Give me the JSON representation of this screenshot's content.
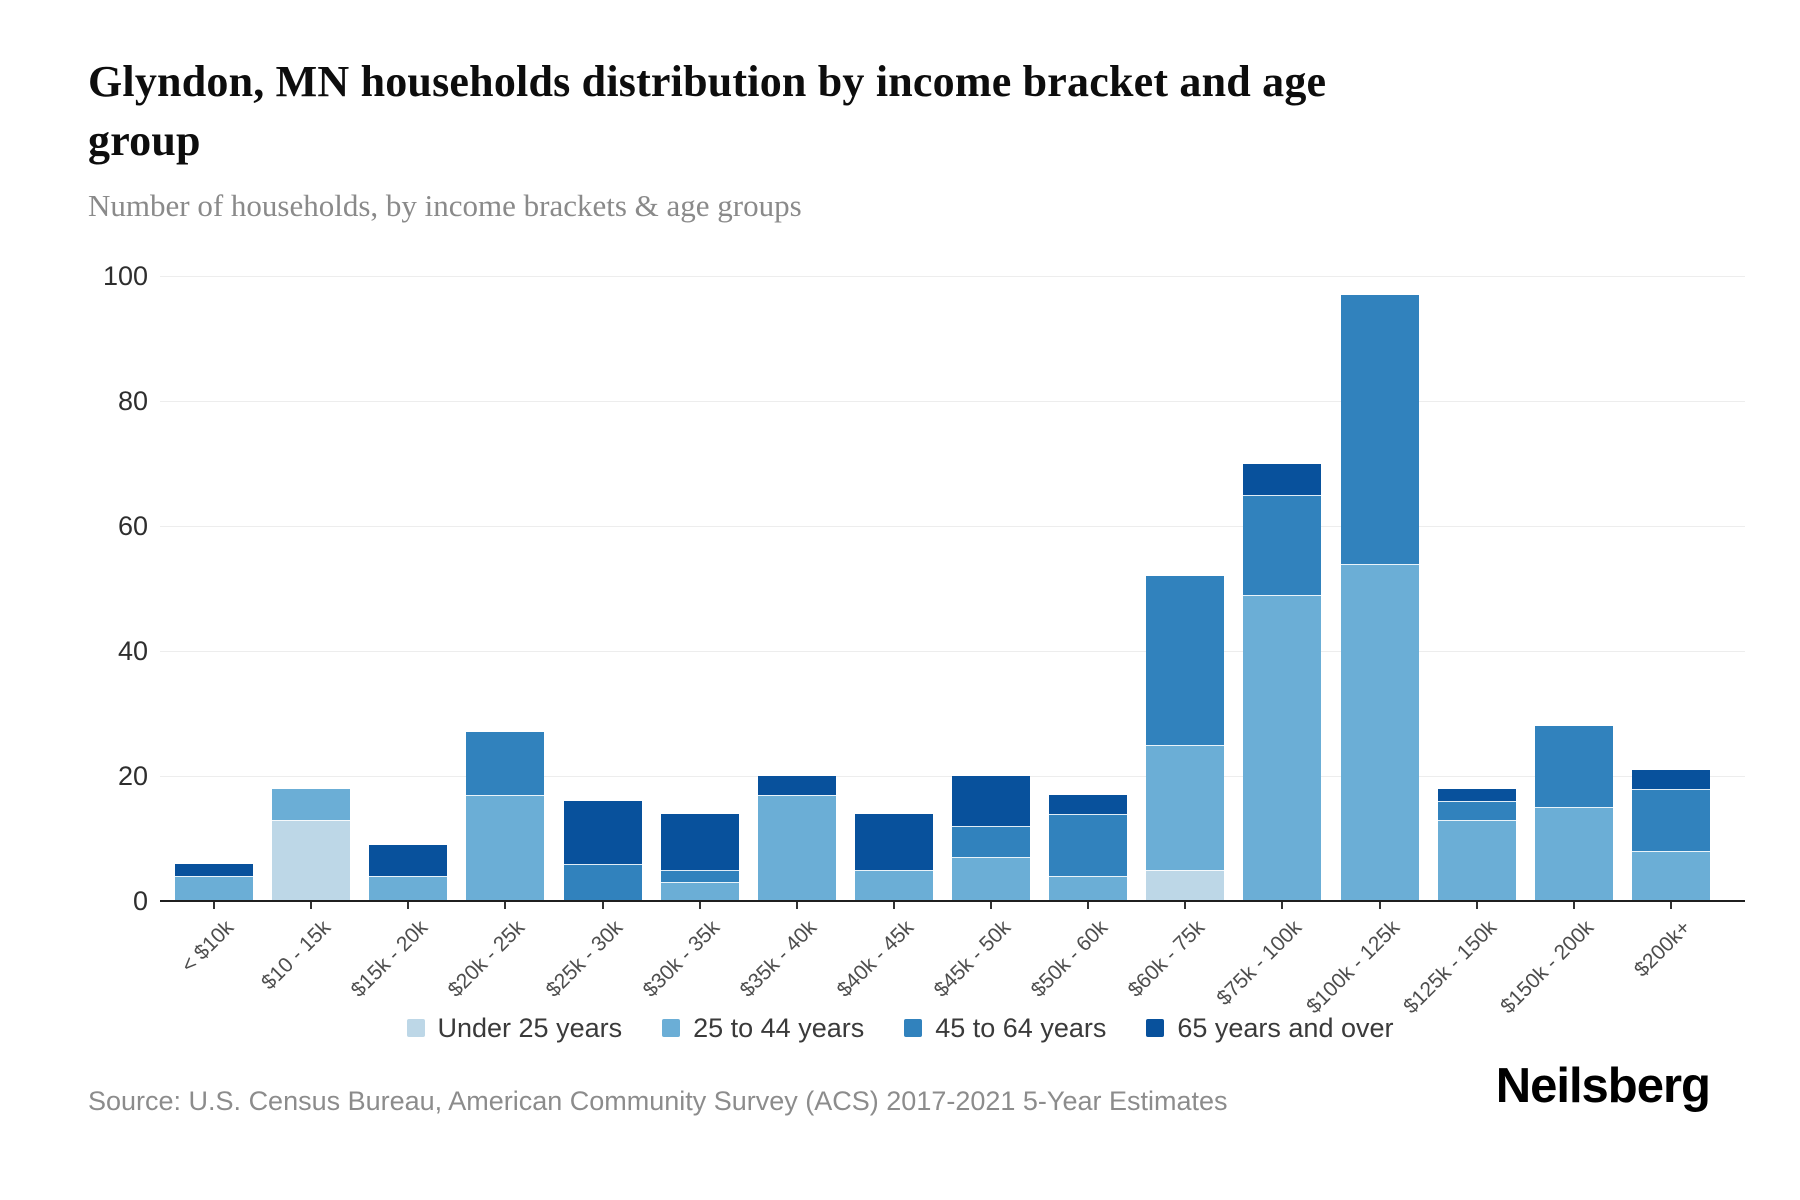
{
  "header": {
    "title_line1": "Glyndon, MN households distribution by income bracket and age",
    "title_line2": "group",
    "subtitle": "Number of households, by income brackets & age groups"
  },
  "chart_data": {
    "type": "bar",
    "stacked": true,
    "title": "Glyndon, MN households distribution by income bracket and age group",
    "subtitle": "Number of households, by income brackets & age groups",
    "categories": [
      "< $10k",
      "$10 - 15k",
      "$15k - 20k",
      "$20k - 25k",
      "$25k - 30k",
      "$30k - 35k",
      "$35k - 40k",
      "$40k - 45k",
      "$45k - 50k",
      "$50k - 60k",
      "$60k - 75k",
      "$75k - 100k",
      "$100k - 125k",
      "$125k - 150k",
      "$150k - 200k",
      "$200k+"
    ],
    "series": [
      {
        "name": "Under 25 years",
        "color": "#bdd7e7",
        "values": [
          0,
          13,
          0,
          0,
          0,
          0,
          0,
          0,
          0,
          0,
          5,
          0,
          0,
          0,
          0,
          0
        ]
      },
      {
        "name": "25 to 44 years",
        "color": "#6baed6",
        "values": [
          4,
          5,
          4,
          17,
          0,
          3,
          17,
          5,
          7,
          4,
          20,
          49,
          54,
          13,
          15,
          8
        ]
      },
      {
        "name": "45 to 64 years",
        "color": "#3182bd",
        "values": [
          0,
          0,
          0,
          10,
          6,
          2,
          0,
          0,
          5,
          10,
          27,
          16,
          43,
          3,
          13,
          10
        ]
      },
      {
        "name": "65 years and over",
        "color": "#08519c",
        "values": [
          2,
          0,
          5,
          0,
          10,
          9,
          3,
          9,
          8,
          3,
          0,
          5,
          0,
          2,
          0,
          3
        ]
      }
    ],
    "totals": [
      6,
      18,
      9,
      27,
      16,
      14,
      20,
      14,
      20,
      17,
      52,
      70,
      97,
      18,
      28,
      21
    ],
    "xlabel": "",
    "ylabel": "",
    "ylim": [
      0,
      100
    ],
    "yticks": [
      0,
      20,
      40,
      60,
      80,
      100
    ],
    "grid": true,
    "legend_position": "bottom"
  },
  "footer": {
    "source": "Source: U.S. Census Bureau, American Community Survey (ACS) 2017-2021 5-Year Estimates",
    "brand": "Neilsberg"
  }
}
